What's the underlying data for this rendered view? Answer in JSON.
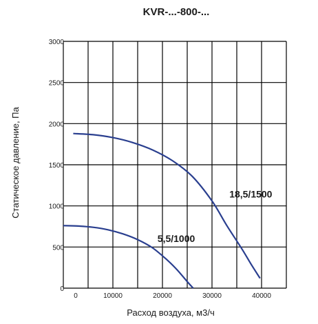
{
  "chart_data": {
    "type": "line",
    "title": "KVR-...-800-...",
    "xlabel": "Расход воздуха, м3/ч",
    "ylabel": "Статическое давление, Па",
    "xlim": [
      0,
      45000
    ],
    "ylim": [
      0,
      3000
    ],
    "x_tick_values": [
      0,
      5000,
      10000,
      15000,
      20000,
      25000,
      30000,
      35000,
      40000,
      45000
    ],
    "x_tick_labels": [
      "0",
      "10000",
      "20000",
      "30000",
      "40000"
    ],
    "x_tick_label_values": [
      0,
      10000,
      20000,
      30000,
      40000
    ],
    "y_ticks": [
      0,
      500,
      1000,
      1500,
      2000,
      2500,
      3000
    ],
    "grid": true,
    "line_color": "#2a3f8f",
    "series": [
      {
        "name": "18,5/1500",
        "x": [
          2000,
          6000,
          10000,
          14000,
          18000,
          22000,
          26000,
          30000,
          33000,
          36000,
          38000,
          39700
        ],
        "y": [
          1880,
          1865,
          1830,
          1770,
          1680,
          1550,
          1360,
          1060,
          760,
          480,
          280,
          120
        ]
      },
      {
        "name": "5,5/1000",
        "x": [
          0,
          3000,
          6000,
          9000,
          12000,
          15000,
          18000,
          21000,
          23000,
          25000,
          26200
        ],
        "y": [
          760,
          755,
          740,
          710,
          660,
          590,
          490,
          340,
          220,
          80,
          0
        ]
      }
    ]
  }
}
